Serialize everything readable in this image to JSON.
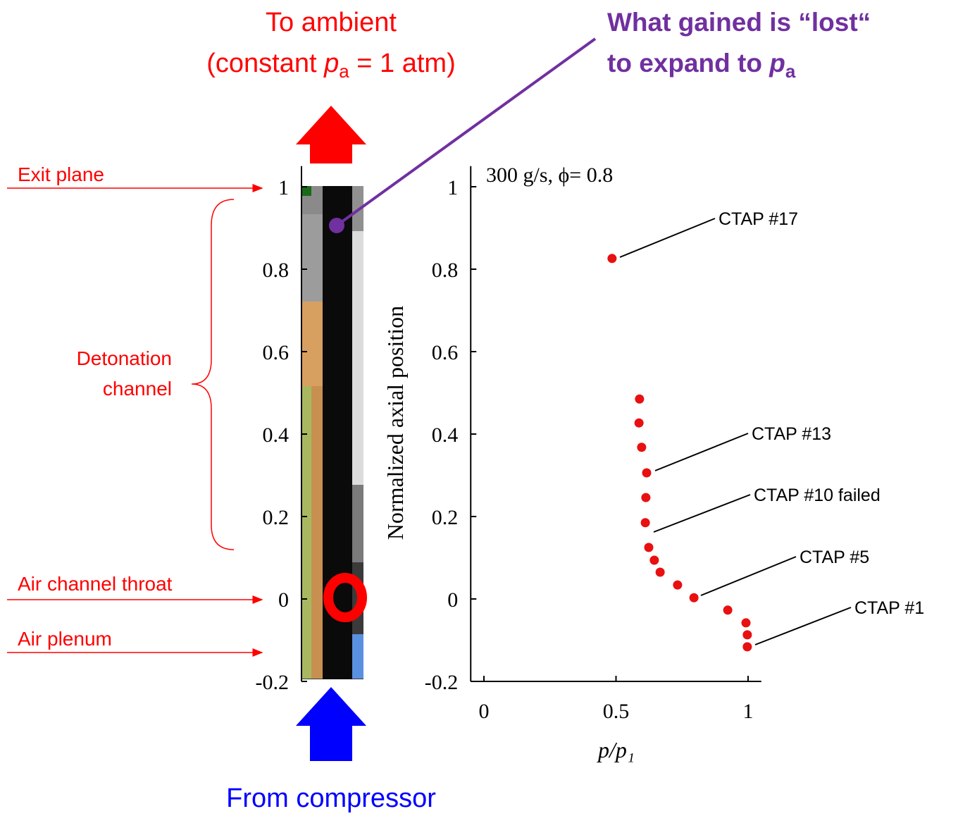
{
  "chart_data": [
    {
      "type": "strip",
      "ylim": [
        -0.2,
        1.05
      ],
      "yticks": [
        -0.2,
        0,
        0.2,
        0.4,
        0.6,
        0.8,
        1
      ],
      "labels": {
        "exit": "Exit plane",
        "channel": [
          "Detonation",
          "channel"
        ],
        "throat": "Air channel throat",
        "plenum": "Air plenum"
      },
      "top_caption": [
        "To ambient",
        "(constant ",
        "p",
        "a",
        " = 1 atm)"
      ],
      "bottom_caption": "From compressor",
      "note": [
        "What gained is “lost“",
        "to expand to ",
        "p",
        "a"
      ],
      "color": "#ff0000"
    },
    {
      "type": "scatter",
      "title": "300 g/s, ϕ= 0.8",
      "xlabel": "p/p₁",
      "ylabel": "Normalized axial position",
      "x": [
        0.485,
        0.589,
        0.587,
        0.597,
        0.616,
        0.613,
        0.611,
        0.624,
        0.645,
        0.667,
        0.733,
        0.795,
        0.923,
        0.992,
        0.997,
        0.997
      ],
      "y": [
        0.826,
        0.485,
        0.427,
        0.368,
        0.306,
        0.246,
        0.185,
        0.125,
        0.094,
        0.065,
        0.034,
        0.003,
        -0.027,
        -0.058,
        -0.087,
        -0.116
      ],
      "color": "#e81010",
      "xlim": [
        -0.05,
        1.05
      ],
      "ylim": [
        -0.2,
        1.05
      ],
      "xticks": [
        0,
        0.5,
        1
      ],
      "yticks": [
        -0.2,
        0,
        0.2,
        0.4,
        0.6,
        0.8,
        1
      ],
      "annotations": [
        "CTAP #17",
        "CTAP #13",
        "CTAP #10 failed",
        "CTAP #5",
        "CTAP #1"
      ]
    }
  ]
}
